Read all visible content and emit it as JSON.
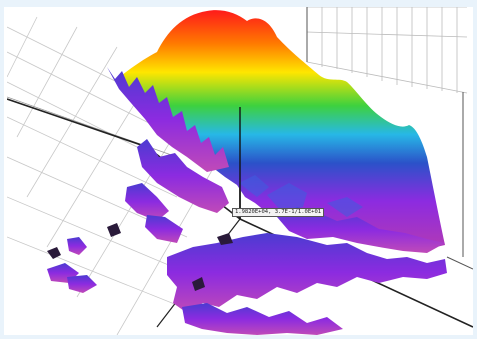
{
  "viewer": {
    "cursor_readout": "1.9820E+04, 3.7E-1/1.0E+01",
    "colormap": [
      "#ff1a1a",
      "#ff7a00",
      "#ffe600",
      "#3ed13e",
      "#27b8e6",
      "#2b52c9",
      "#8c2be0",
      "#b23ab5"
    ],
    "background_color": "#ffffff",
    "frame_color": "#e9f3fb"
  }
}
